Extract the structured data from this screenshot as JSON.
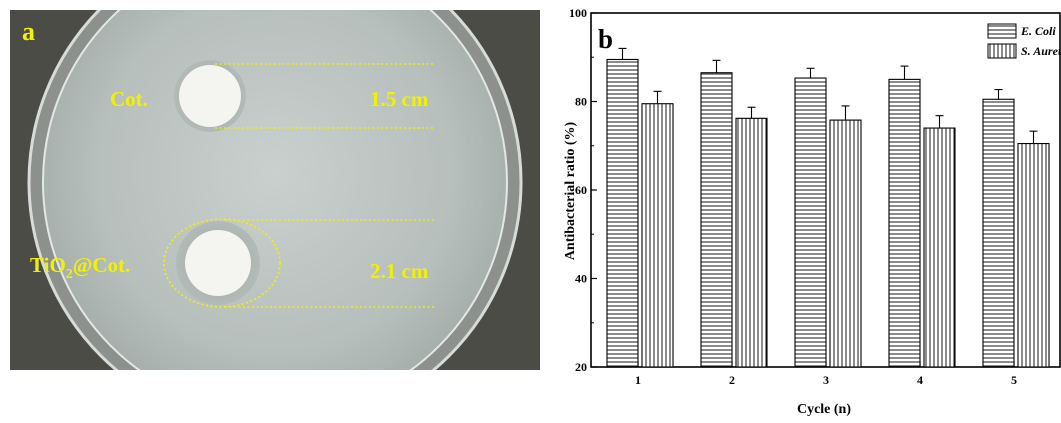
{
  "panel_a": {
    "label": "a",
    "sample_top": "Cot.",
    "sample_bottom_prefix": "TiO",
    "sample_bottom_sub": "2",
    "sample_bottom_suffix": "@Cot.",
    "zone_top": "1.5 cm",
    "zone_bottom": "2.1 cm",
    "colors": {
      "background": "#4b4c46",
      "annotation": "#f2f200",
      "agar": "#bfc6c3",
      "sample": "#f4f4f0"
    }
  },
  "panel_b": {
    "label": "b"
  },
  "chart_data": {
    "type": "bar",
    "title": "",
    "xlabel": "Cycle (n)",
    "ylabel": "Antibacterial ratio (%)",
    "categories": [
      "1",
      "2",
      "3",
      "4",
      "5"
    ],
    "ylim": [
      20,
      100
    ],
    "yticks": [
      "20",
      "40",
      "60",
      "80",
      "100"
    ],
    "legend_position": "top-right",
    "grid": false,
    "series": [
      {
        "name": "E. Coli",
        "pattern": "horizontal-hatch",
        "values": [
          89.5,
          86.5,
          85.3,
          85.0,
          80.5
        ],
        "errors": [
          2.5,
          2.8,
          2.2,
          3.0,
          2.2
        ]
      },
      {
        "name": "S. Aureus",
        "pattern": "vertical-hatch",
        "values": [
          79.5,
          76.2,
          75.8,
          74.0,
          70.5
        ],
        "errors": [
          2.8,
          2.5,
          3.2,
          2.8,
          2.8
        ]
      }
    ]
  }
}
